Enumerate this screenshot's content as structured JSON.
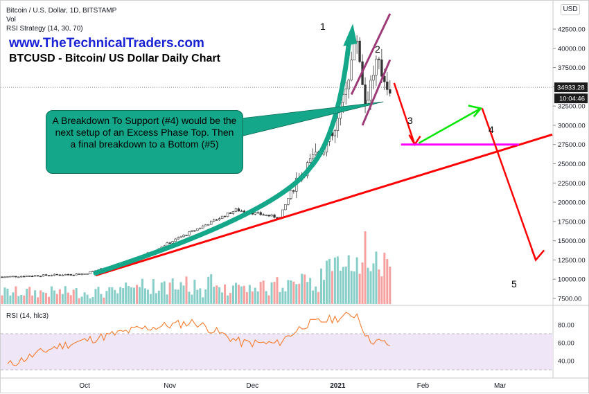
{
  "header": {
    "symbol_line": "Bitcoin / U.S. Dollar, 1D, BITSTAMP",
    "vol_label": "Vol",
    "strategy_label": "RSI Strategy (14, 30, 70)",
    "currency_button": "USD"
  },
  "branding": {
    "site": "www.TheTechnicalTraders.com",
    "subtitle": "BTCUSD - Bitcoin/ US Dollar Daily Chart"
  },
  "callout_text": "A Breakdown To Support (#4) would be the next setup of an Excess Phase Top.  Then a final breakdown to a Bottom (#5)",
  "wave_labels": [
    "1",
    "2",
    "3",
    "4",
    "5"
  ],
  "price_tags": {
    "last_price": "34933.28",
    "countdown": "10:04:46"
  },
  "rsi_panel": {
    "label": "RSI (14, hlc3)",
    "ticks": [
      "80.00",
      "60.00",
      "40.00"
    ],
    "band": [
      30,
      70
    ]
  },
  "colors": {
    "up": "#26a69a",
    "down": "#ef5350",
    "trend": "#ff0000",
    "arrow_teal": "#14a789",
    "support": "#ff00ff",
    "recovery": "#00e600",
    "channel": "#9c3b78",
    "rsi_line": "#f57c2c",
    "rsi_band": "#efe6f7"
  },
  "chart_data": {
    "type": "candlestick",
    "title": "Bitcoin / U.S. Dollar, 1D, BITSTAMP",
    "x_ticks": [
      "Oct",
      "Nov",
      "Dec",
      "2021",
      "Feb",
      "Mar"
    ],
    "y_ticks": [
      "42500.00",
      "40000.00",
      "37500.00",
      "35000.00",
      "32500.00",
      "30000.00",
      "27500.00",
      "25000.00",
      "22500.00",
      "20000.00",
      "17500.00",
      "15000.00",
      "12500.00",
      "10000.00",
      "7500.00"
    ],
    "ylim": [
      7000,
      45000
    ],
    "x_start": "2020-09-01",
    "x_end": "2021-03-20",
    "last_close": 34933.28,
    "key_prices": [
      {
        "date": "2020-09-01",
        "price": 10300
      },
      {
        "date": "2020-10-01",
        "price": 10700
      },
      {
        "date": "2020-10-21",
        "price": 12800
      },
      {
        "date": "2020-11-05",
        "price": 15500
      },
      {
        "date": "2020-11-25",
        "price": 19000
      },
      {
        "date": "2020-12-11",
        "price": 18000
      },
      {
        "date": "2020-12-17",
        "price": 23000
      },
      {
        "date": "2020-12-31",
        "price": 29000
      },
      {
        "date": "2021-01-08",
        "price": 41500
      },
      {
        "date": "2021-01-11",
        "price": 33000
      },
      {
        "date": "2021-01-15",
        "price": 38000
      },
      {
        "date": "2021-01-20",
        "price": 34933
      }
    ],
    "rsi_series_sample": [
      {
        "date": "2020-09-03",
        "value": 35
      },
      {
        "date": "2020-09-20",
        "value": 55
      },
      {
        "date": "2020-10-20",
        "value": 75
      },
      {
        "date": "2020-11-10",
        "value": 83
      },
      {
        "date": "2020-11-27",
        "value": 60
      },
      {
        "date": "2020-12-10",
        "value": 59
      },
      {
        "date": "2020-12-20",
        "value": 80
      },
      {
        "date": "2021-01-08",
        "value": 92
      },
      {
        "date": "2021-01-12",
        "value": 64
      },
      {
        "date": "2021-01-20",
        "value": 58
      }
    ],
    "annotations": {
      "support_level": 27500,
      "projection": [
        {
          "label": "3",
          "date": "2021-01-29",
          "price": 27500
        },
        {
          "label": "4",
          "date": "2021-02-22",
          "price": 32200
        },
        {
          "label": "5",
          "date": "2021-03-14",
          "price": 12500
        }
      ]
    }
  }
}
